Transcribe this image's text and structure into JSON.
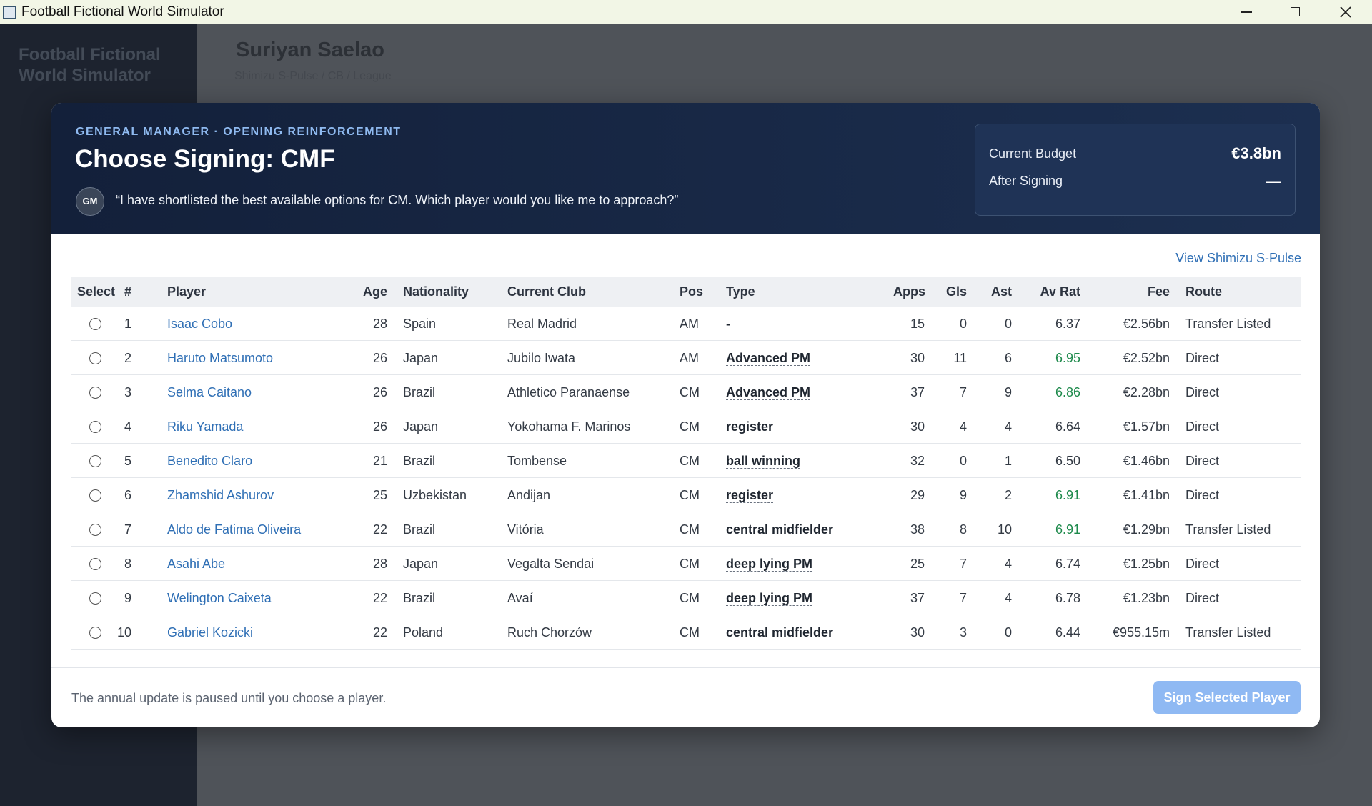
{
  "window": {
    "title": "Football Fictional World Simulator"
  },
  "background": {
    "app_name": "Football Fictional World Simulator",
    "player_name": "Suriyan Saelao",
    "player_sub": "Shimizu S-Pulse / CB / League"
  },
  "modal": {
    "eyebrow": "GENERAL MANAGER · OPENING REINFORCEMENT",
    "title": "Choose Signing: CMF",
    "avatar": "GM",
    "quote": "“I have shortlisted the best available options for CM. Which player would you like me to approach?”",
    "budget": {
      "current_label": "Current Budget",
      "current_value": "€3.8bn",
      "after_label": "After Signing",
      "after_value": "—"
    },
    "club_link": "View Shimizu S-Pulse",
    "table": {
      "headers": [
        "Select",
        "#",
        "Player",
        "Age",
        "Nationality",
        "Current Club",
        "Pos",
        "Type",
        "Apps",
        "Gls",
        "Ast",
        "Av Rat",
        "Fee",
        "Route"
      ],
      "rows": [
        {
          "rank": 1,
          "player": "Isaac Cobo",
          "age": 28,
          "nationality": "Spain",
          "club": "Real Madrid",
          "pos": "AM",
          "type": "-",
          "apps": 15,
          "gls": 0,
          "ast": 0,
          "rating": "6.37",
          "rating_color": "#333a44",
          "fee": "€2.56bn",
          "route": "Transfer Listed"
        },
        {
          "rank": 2,
          "player": "Haruto Matsumoto",
          "age": 26,
          "nationality": "Japan",
          "club": "Jubilo Iwata",
          "pos": "AM",
          "type": "Advanced PM",
          "apps": 30,
          "gls": 11,
          "ast": 6,
          "rating": "6.95",
          "rating_color": "#1e8a4c",
          "fee": "€2.52bn",
          "route": "Direct"
        },
        {
          "rank": 3,
          "player": "Selma Caitano",
          "age": 26,
          "nationality": "Brazil",
          "club": "Athletico Paranaense",
          "pos": "CM",
          "type": "Advanced PM",
          "apps": 37,
          "gls": 7,
          "ast": 9,
          "rating": "6.86",
          "rating_color": "#1e8a4c",
          "fee": "€2.28bn",
          "route": "Direct"
        },
        {
          "rank": 4,
          "player": "Riku Yamada",
          "age": 26,
          "nationality": "Japan",
          "club": "Yokohama F. Marinos",
          "pos": "CM",
          "type": "register",
          "apps": 30,
          "gls": 4,
          "ast": 4,
          "rating": "6.64",
          "rating_color": "#333a44",
          "fee": "€1.57bn",
          "route": "Direct"
        },
        {
          "rank": 5,
          "player": "Benedito Claro",
          "age": 21,
          "nationality": "Brazil",
          "club": "Tombense",
          "pos": "CM",
          "type": "ball winning",
          "apps": 32,
          "gls": 0,
          "ast": 1,
          "rating": "6.50",
          "rating_color": "#333a44",
          "fee": "€1.46bn",
          "route": "Direct"
        },
        {
          "rank": 6,
          "player": "Zhamshid Ashurov",
          "age": 25,
          "nationality": "Uzbekistan",
          "club": "Andijan",
          "pos": "CM",
          "type": "register",
          "apps": 29,
          "gls": 9,
          "ast": 2,
          "rating": "6.91",
          "rating_color": "#1e8a4c",
          "fee": "€1.41bn",
          "route": "Direct"
        },
        {
          "rank": 7,
          "player": "Aldo de Fatima Oliveira",
          "age": 22,
          "nationality": "Brazil",
          "club": "Vitória",
          "pos": "CM",
          "type": "central midfielder",
          "apps": 38,
          "gls": 8,
          "ast": 10,
          "rating": "6.91",
          "rating_color": "#1e8a4c",
          "fee": "€1.29bn",
          "route": "Transfer Listed"
        },
        {
          "rank": 8,
          "player": "Asahi Abe",
          "age": 28,
          "nationality": "Japan",
          "club": "Vegalta Sendai",
          "pos": "CM",
          "type": "deep lying PM",
          "apps": 25,
          "gls": 7,
          "ast": 4,
          "rating": "6.74",
          "rating_color": "#333a44",
          "fee": "€1.25bn",
          "route": "Direct"
        },
        {
          "rank": 9,
          "player": "Welington Caixeta",
          "age": 22,
          "nationality": "Brazil",
          "club": "Avaí",
          "pos": "CM",
          "type": "deep lying PM",
          "apps": 37,
          "gls": 7,
          "ast": 4,
          "rating": "6.78",
          "rating_color": "#333a44",
          "fee": "€1.23bn",
          "route": "Direct"
        },
        {
          "rank": 10,
          "player": "Gabriel Kozicki",
          "age": 22,
          "nationality": "Poland",
          "club": "Ruch Chorzów",
          "pos": "CM",
          "type": "central midfielder",
          "apps": 30,
          "gls": 3,
          "ast": 0,
          "rating": "6.44",
          "rating_color": "#333a44",
          "fee": "€955.15m",
          "route": "Transfer Listed"
        }
      ]
    },
    "footer_note": "The annual update is paused until you choose a player.",
    "button": "Sign Selected Player"
  }
}
